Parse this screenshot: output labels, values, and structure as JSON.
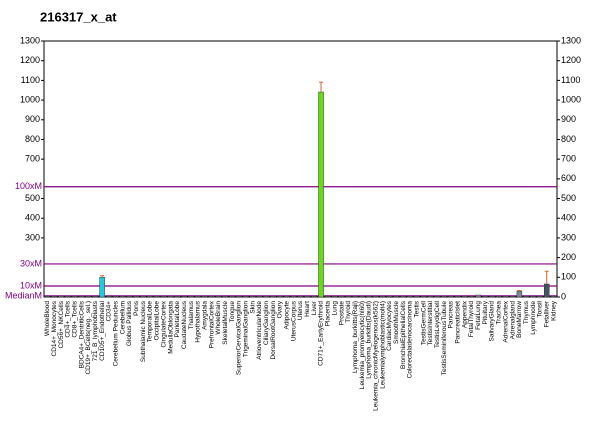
{
  "chart_data": {
    "type": "bar",
    "title": "216317_x_at",
    "categories": [
      "WholeBlood",
      "CD14+_Monocytes",
      "CD56+_NKCells",
      "CD4+_Tcells",
      "CD8+_Tcells",
      "BDCA4+_DentriticCells",
      "CD19+_BCells(neg._sel.)",
      "721_B_lymphoblasts",
      "CD105+_Endothelial",
      "CD34+",
      "Cerebellum Peduncles",
      "Cerebellum",
      "Globus Pallidus",
      "Pons",
      "Subthalamic Nucleus",
      "TemporalLobe",
      "OccipitalLobe",
      "CingulateCortex",
      "MedullaOblongata",
      "ParietalLobe",
      "CaudateNucleus",
      "Thalamus",
      "Hypothalamus",
      "Amygdala",
      "PrefrontalCortex",
      "WholeBrain",
      "SkeletalMuscle",
      "Tongue",
      "SuperiorCervicalGanglion",
      "TrigeminalGanglion",
      "Skin",
      "AtrioventricularNode",
      "CiliaryGanglion",
      "DorsalRootGanglion",
      "Ovary",
      "Adipocyte",
      "UterusCorpus",
      "Uterus",
      "Heart",
      "Liver",
      "CD71+_EarlyErythroid",
      "Placenta",
      "Lung",
      "Prostate",
      "Thyroid",
      "Lymphoma_burkitts(Raji)",
      "Leukemia_promyelocytic(hl60)",
      "Lymphoma_burkitts(Daudi)",
      "Leukemia_chronicMyelogenous(k562)",
      "Leukemialymphoblastic(molt4)",
      "CardiacMyocytes",
      "SmoothMuscle",
      "BronchialEpithelialCells",
      "Colorectaladenocarcinoma",
      "Testis",
      "TestisGermCell",
      "TestisInterstitial",
      "TestisLeydigCell",
      "TestisSeminiferousTubule",
      "Pancreas",
      "PancreaticIslet",
      "Appendix",
      "FetalThyroid",
      "FetalLung",
      "Pituitary",
      "SalivaryGland",
      "Trachea",
      "AdrenalCortex",
      "Adrenalgland",
      "BoneMarrow",
      "Thymus",
      "Lymphnode",
      "Tonsil",
      "Fetalliver",
      "Kidney"
    ],
    "values": [
      4,
      4,
      5,
      4,
      4,
      4,
      4,
      4,
      100,
      4,
      4,
      4,
      4,
      4,
      4,
      4,
      4,
      4,
      4,
      4,
      4,
      4,
      4,
      4,
      4,
      4,
      4,
      4,
      4,
      4,
      4,
      4,
      4,
      4,
      4,
      4,
      4,
      4,
      4,
      4,
      1041,
      4,
      4,
      4,
      4,
      4,
      4,
      4,
      4,
      4,
      4,
      4,
      4,
      4,
      4,
      4,
      4,
      4,
      4,
      4,
      4,
      4,
      4,
      10,
      4,
      4,
      4,
      4,
      4,
      30,
      4,
      4,
      4,
      66,
      4
    ],
    "errors": [
      null,
      null,
      null,
      null,
      null,
      null,
      null,
      null,
      8,
      null,
      null,
      null,
      null,
      null,
      null,
      null,
      null,
      null,
      null,
      null,
      null,
      null,
      null,
      null,
      null,
      null,
      null,
      null,
      null,
      null,
      null,
      null,
      null,
      null,
      null,
      null,
      null,
      null,
      null,
      null,
      50,
      null,
      null,
      null,
      null,
      null,
      null,
      null,
      null,
      null,
      null,
      null,
      null,
      null,
      null,
      null,
      null,
      null,
      null,
      null,
      null,
      null,
      null,
      null,
      null,
      null,
      null,
      null,
      null,
      3,
      null,
      null,
      null,
      65,
      null
    ],
    "colors": [
      "#888888",
      "#888888",
      "#888888",
      "#888888",
      "#888888",
      "#888888",
      "#888888",
      "#888888",
      "#22ccdd",
      "#888888",
      "#888888",
      "#888888",
      "#888888",
      "#888888",
      "#888888",
      "#888888",
      "#888888",
      "#888888",
      "#888888",
      "#888888",
      "#888888",
      "#888888",
      "#888888",
      "#888888",
      "#888888",
      "#888888",
      "#888888",
      "#888888",
      "#888888",
      "#888888",
      "#888888",
      "#888888",
      "#888888",
      "#888888",
      "#888888",
      "#888888",
      "#888888",
      "#888888",
      "#888888",
      "#888888",
      "#66dd11",
      "#888888",
      "#888888",
      "#888888",
      "#888888",
      "#888888",
      "#888888",
      "#888888",
      "#888888",
      "#888888",
      "#888888",
      "#888888",
      "#888888",
      "#888888",
      "#888888",
      "#888888",
      "#888888",
      "#888888",
      "#888888",
      "#888888",
      "#888888",
      "#888888",
      "#666666",
      "#888888",
      "#888888",
      "#888888",
      "#888888",
      "#888888",
      "#888888",
      "#778899",
      "#888888",
      "#888888",
      "#888888",
      "#445566",
      "#888888"
    ],
    "ylim": [
      0,
      1300
    ],
    "yticks": [
      300,
      400,
      500,
      700,
      800,
      900,
      1000,
      1100,
      1200,
      1300
    ],
    "y2lim": [
      0,
      1300
    ],
    "y2ticks": [
      0,
      100,
      200,
      300,
      400,
      500,
      600,
      700,
      800,
      900,
      1000,
      1100,
      1200,
      1300
    ],
    "reference_lines": [
      {
        "label": "100xM",
        "value": 560
      },
      {
        "label": "30xM",
        "value": 168
      },
      {
        "label": "10xM",
        "value": 56
      },
      {
        "label": "MedianM",
        "value": 5.6
      }
    ]
  }
}
